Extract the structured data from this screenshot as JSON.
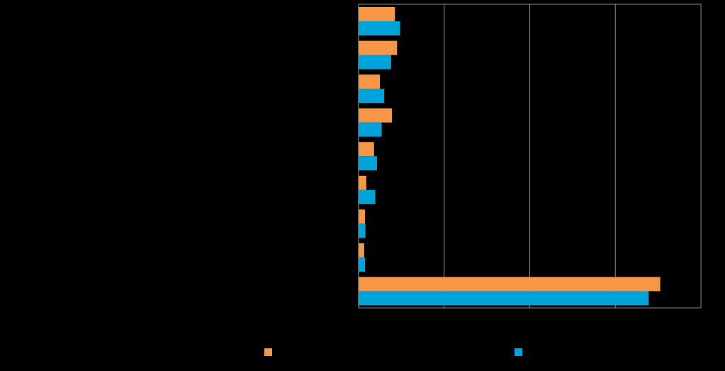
{
  "chart_data": {
    "type": "bar",
    "orientation": "horizontal",
    "categories": [
      "",
      "",
      "",
      "",
      "",
      "",
      "",
      "",
      ""
    ],
    "series": [
      {
        "color": "#F79646",
        "values": [
          0.85,
          0.9,
          0.5,
          0.78,
          0.36,
          0.18,
          0.15,
          0.13,
          7.05
        ]
      },
      {
        "color": "#00A3DA",
        "values": [
          0.97,
          0.76,
          0.6,
          0.54,
          0.43,
          0.39,
          0.16,
          0.15,
          6.78
        ]
      }
    ],
    "xlim": [
      0,
      8
    ],
    "grid": true,
    "legend": "bottom"
  }
}
